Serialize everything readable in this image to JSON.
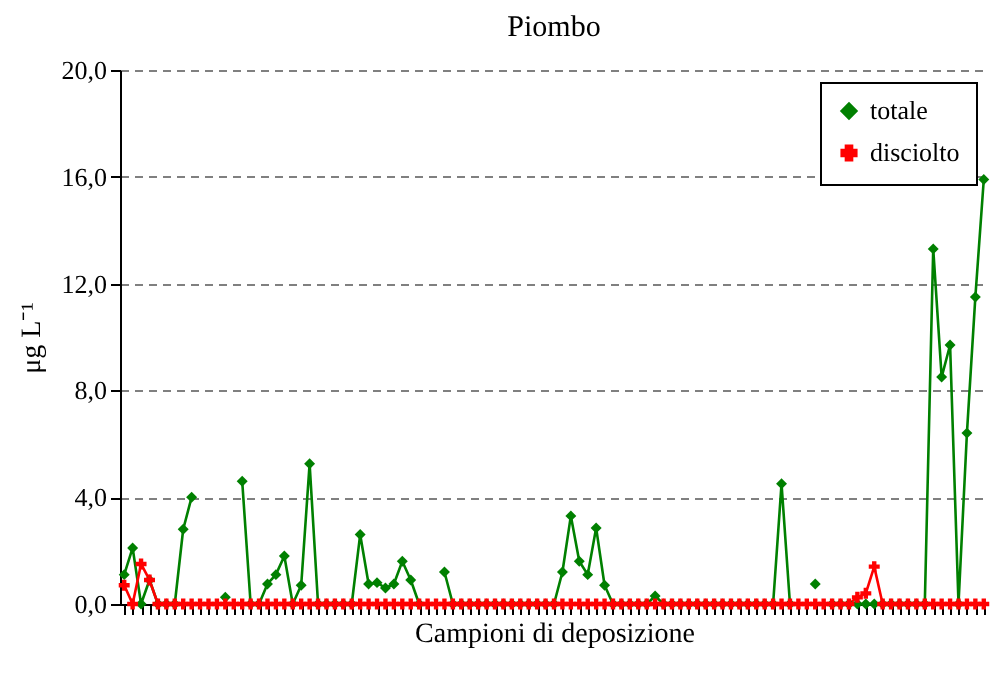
{
  "chart_data": {
    "type": "line",
    "title": "Piombo",
    "xlabel": "Campioni di deposizione",
    "ylabel": "μg L⁻¹",
    "categories": [
      null,
      null,
      null,
      null,
      null,
      null,
      null,
      null,
      null,
      null,
      null,
      null,
      null,
      null,
      null,
      null,
      null,
      null,
      null,
      null,
      null,
      null,
      null,
      null,
      null,
      null,
      null,
      null,
      null,
      null,
      null,
      null,
      null,
      null,
      null,
      null,
      null,
      null,
      null,
      null,
      null,
      null,
      null,
      null,
      null,
      null,
      null,
      null,
      null,
      null,
      null,
      null,
      null,
      null,
      null,
      null,
      null,
      null,
      null,
      null,
      null,
      null,
      null,
      null,
      null,
      null,
      null,
      null,
      null,
      null,
      null,
      null,
      null,
      null,
      null,
      null,
      null,
      null,
      null,
      null,
      null,
      null,
      null,
      null,
      null,
      null,
      null,
      null,
      null,
      null,
      null,
      null,
      null,
      null,
      null,
      null,
      null,
      null,
      null,
      null,
      null,
      null,
      null
    ],
    "series": [
      {
        "name": "totale",
        "color": "#008000",
        "marker": "diamond",
        "values": [
          1.1,
          2.1,
          0,
          0.9,
          0,
          0,
          0,
          2.8,
          4.0,
          null,
          null,
          null,
          0.25,
          null,
          4.6,
          0,
          0,
          0.75,
          1.1,
          1.8,
          0,
          0.7,
          5.25,
          0,
          0,
          0,
          0,
          0,
          2.6,
          0.75,
          0.8,
          0.6,
          0.75,
          1.6,
          0.9,
          0,
          null,
          null,
          1.2,
          0,
          0,
          0,
          0,
          0,
          0,
          0,
          0,
          0,
          0,
          0,
          0,
          0,
          1.2,
          3.3,
          1.6,
          1.1,
          2.85,
          0.7,
          0,
          0,
          0,
          0,
          0,
          0.3,
          0,
          0,
          0,
          0,
          0,
          0,
          0,
          0,
          0,
          0,
          0,
          0,
          0,
          0,
          4.5,
          0,
          null,
          null,
          0.75,
          null,
          0,
          0,
          0,
          0,
          0,
          0,
          0,
          0,
          0,
          0,
          0,
          0,
          13.3,
          8.5,
          9.7,
          0,
          6.4,
          11.5,
          15.9
        ]
      },
      {
        "name": "disciolto",
        "color": "#ff0000",
        "marker": "cross",
        "values": [
          0.7,
          0,
          1.5,
          0.9,
          0,
          0,
          0,
          0,
          0,
          0,
          0,
          0,
          0,
          0,
          0,
          0,
          0,
          0,
          0,
          0,
          0,
          0,
          0,
          0,
          0,
          0,
          0,
          0,
          0,
          0,
          0,
          0,
          0,
          0,
          0,
          0,
          0,
          0,
          0,
          0,
          0,
          0,
          0,
          0,
          0,
          0,
          0,
          0,
          0,
          0,
          0,
          0,
          0,
          0,
          0,
          0,
          0,
          0,
          0,
          0,
          0,
          0,
          0,
          0,
          0,
          0,
          0,
          0,
          0,
          0,
          0,
          0,
          0,
          0,
          0,
          0,
          0,
          0,
          0,
          0,
          0,
          0,
          0,
          0,
          0,
          0,
          0,
          0.25,
          0.4,
          1.4,
          0,
          0,
          0,
          0,
          0,
          0,
          0,
          0,
          0,
          0,
          0,
          0,
          0
        ]
      }
    ],
    "ylim": [
      0,
      20
    ],
    "yticks": [
      {
        "value": 0,
        "label": "0,0"
      },
      {
        "value": 4,
        "label": "4,0"
      },
      {
        "value": 8,
        "label": "8,0"
      },
      {
        "value": 12,
        "label": "12,0"
      },
      {
        "value": 16,
        "label": "16,0"
      },
      {
        "value": 20,
        "label": "20,0"
      }
    ],
    "grid": "y",
    "legend": "top right",
    "tick_labels": "y",
    "line_style": "solid"
  }
}
